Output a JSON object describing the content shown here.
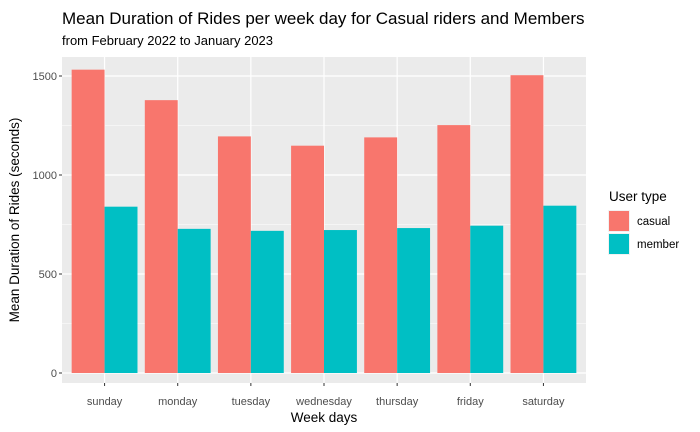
{
  "chart_data": {
    "type": "bar",
    "title": "Mean Duration of Rides per week day for Casual riders and Members",
    "subtitle": "from February 2022 to January 2023",
    "xlabel": "Week days",
    "ylabel": "Mean Duration of Rides (seconds)",
    "categories": [
      "sunday",
      "monday",
      "tuesday",
      "wednesday",
      "thursday",
      "friday",
      "saturday"
    ],
    "series": [
      {
        "name": "casual",
        "color": "#F8766D",
        "values": [
          1532,
          1378,
          1195,
          1148,
          1190,
          1252,
          1504
        ]
      },
      {
        "name": "member",
        "color": "#00BFC4",
        "values": [
          840,
          728,
          718,
          722,
          732,
          744,
          845
        ]
      }
    ],
    "ylim": [
      0,
      1550
    ],
    "yticks": [
      0,
      500,
      1000,
      1500
    ],
    "legend": {
      "title": "User type",
      "position": "right"
    },
    "grid": true,
    "panel_background": "#EBEBEB"
  }
}
